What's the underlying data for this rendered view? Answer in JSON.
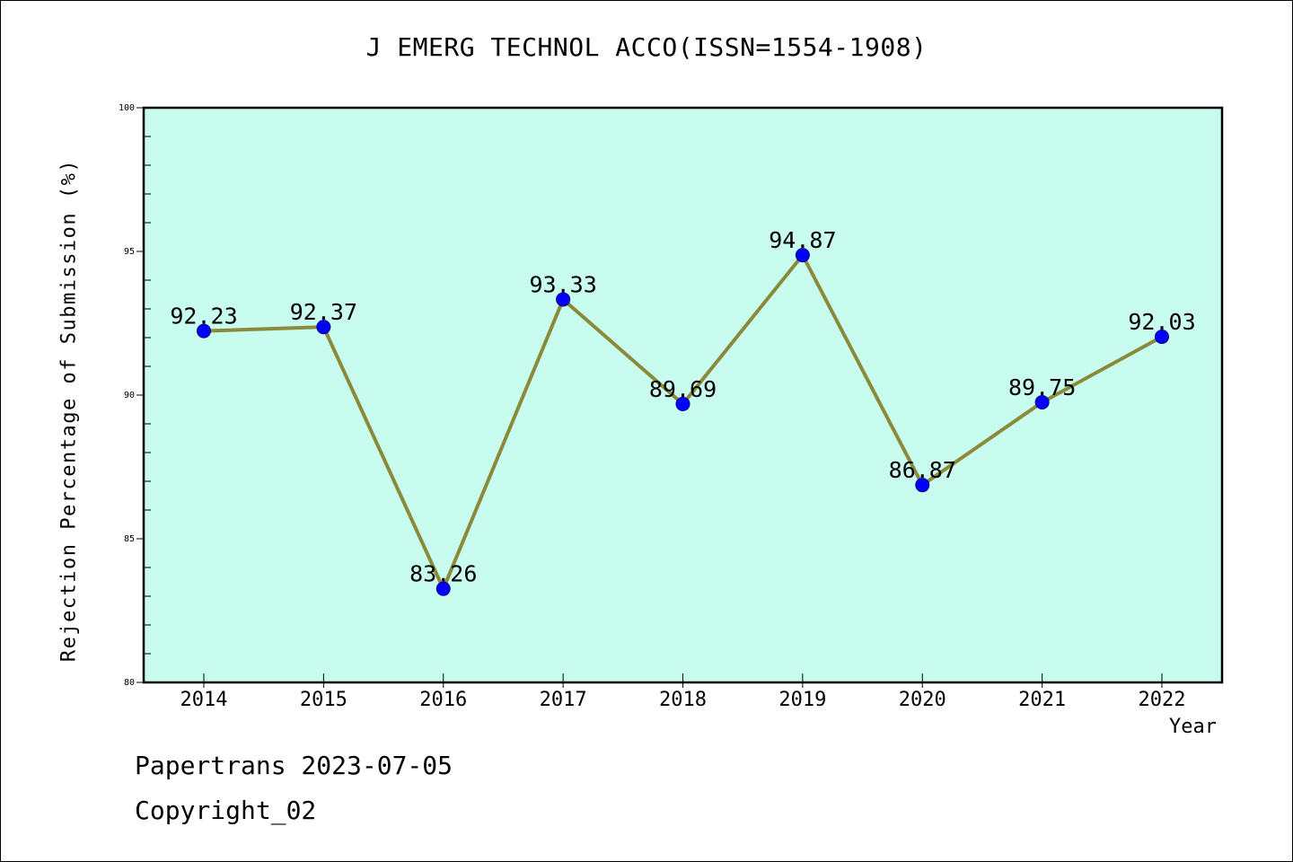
{
  "title": "J EMERG TECHNOL ACCO(ISSN=1554-1908)",
  "footer": {
    "date": "Papertrans 2023-07-05",
    "copyright": "Copyright_02"
  },
  "colors": {
    "plot_background": "#c8fcee",
    "line": "#8a8a3a",
    "marker": "#0000ff",
    "marker_edge": "#00008b"
  },
  "chart_data": {
    "type": "line",
    "title": "J EMERG TECHNOL ACCO(ISSN=1554-1908)",
    "xlabel": "Year",
    "ylabel": "Rejection Percentage of Submission (%)",
    "categories": [
      "2014",
      "2015",
      "2016",
      "2017",
      "2018",
      "2019",
      "2020",
      "2021",
      "2022"
    ],
    "series": [
      {
        "values": [
          92.23,
          92.37,
          83.26,
          93.33,
          89.69,
          94.87,
          86.87,
          89.75,
          92.03
        ],
        "labels": [
          "92.23",
          "92.37",
          "83.26",
          "93.33",
          "89.69",
          "94.87",
          "86.87",
          "89.75",
          "92.03"
        ]
      }
    ],
    "ylim": [
      80,
      100
    ],
    "yticks": [
      "80",
      "85",
      "90",
      "95",
      "100"
    ],
    "grid": false,
    "legend": "none"
  }
}
